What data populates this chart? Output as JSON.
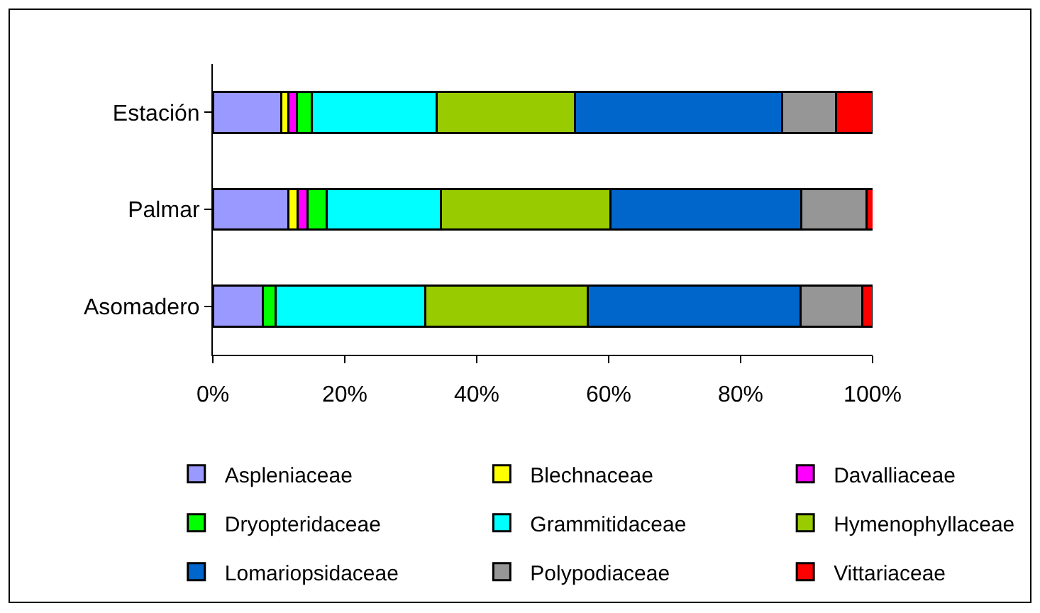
{
  "chart_data": {
    "type": "bar",
    "orientation": "horizontal",
    "stacked": true,
    "categories": [
      "Estación",
      "Palmar",
      "Asomadero"
    ],
    "series": [
      {
        "name": "Aspleniaceae",
        "color": "#9999ff",
        "values": [
          10.4,
          11.5,
          7.6
        ]
      },
      {
        "name": "Blechnaceae",
        "color": "#ffff00",
        "values": [
          1.1,
          1.4,
          0
        ]
      },
      {
        "name": "Davalliaceae",
        "color": "#ff00ff",
        "values": [
          1.2,
          1.4,
          0
        ]
      },
      {
        "name": "Dryopteridaceae",
        "color": "#00ff00",
        "values": [
          2.3,
          3.0,
          1.9
        ]
      },
      {
        "name": "Grammitidaceae",
        "color": "#00ffff",
        "values": [
          18.9,
          17.3,
          22.7
        ]
      },
      {
        "name": "Hymenophyllaceae",
        "color": "#99cc00",
        "values": [
          21.0,
          25.7,
          24.6
        ]
      },
      {
        "name": "Lomariopsidaceae",
        "color": "#0066cc",
        "values": [
          31.4,
          28.9,
          32.3
        ]
      },
      {
        "name": "Polypodiaceae",
        "color": "#969696",
        "values": [
          8.2,
          9.9,
          9.3
        ]
      },
      {
        "name": "Vittariaceae",
        "color": "#ff0000",
        "values": [
          5.6,
          1.1,
          1.7
        ]
      }
    ],
    "xlim": [
      0,
      100
    ],
    "xticks": [
      {
        "value": 0,
        "label": "0%"
      },
      {
        "value": 20,
        "label": "20%"
      },
      {
        "value": 40,
        "label": "40%"
      },
      {
        "value": 60,
        "label": "60%"
      },
      {
        "value": 80,
        "label": "80%"
      },
      {
        "value": 100,
        "label": "100%"
      }
    ],
    "grid": false,
    "legend": "bottom"
  }
}
